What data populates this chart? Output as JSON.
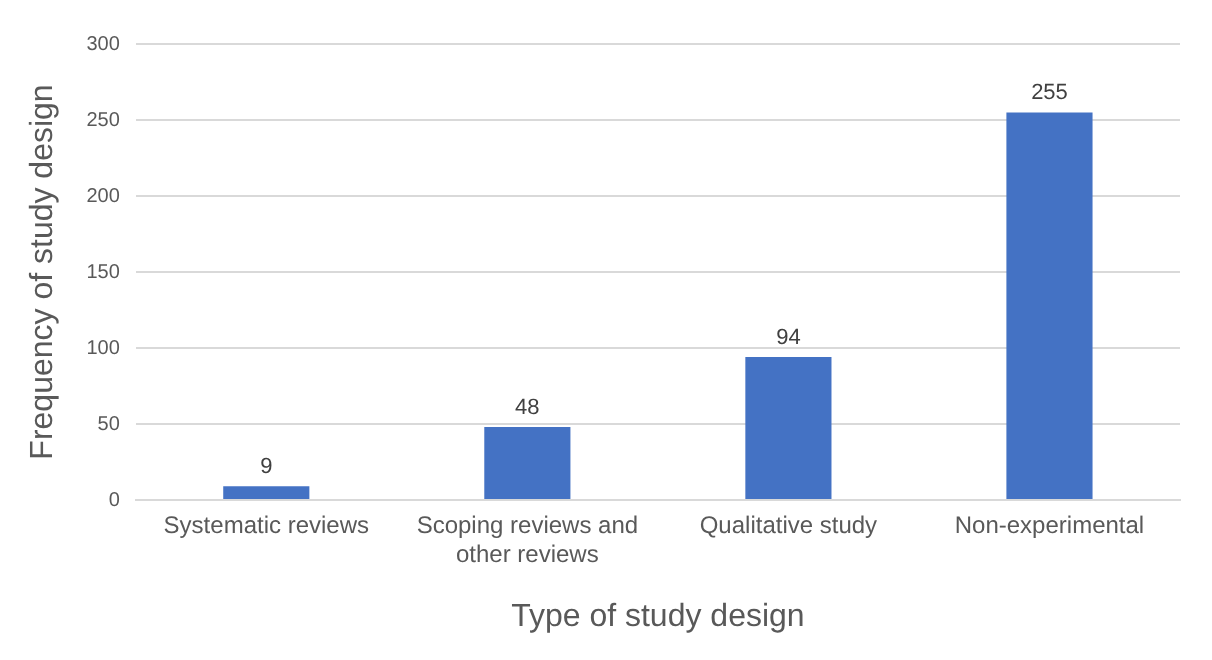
{
  "chart_data": {
    "type": "bar",
    "xlabel": "Type of study design",
    "ylabel": "Frequency of study design",
    "categories": [
      "Systematic reviews",
      "Scoping reviews and other reviews",
      "Qualitative study",
      "Non-experimental"
    ],
    "values": [
      9,
      48,
      94,
      255
    ],
    "color": "#4472c4",
    "ylim": [
      0,
      300
    ],
    "yticks": [
      0,
      50,
      100,
      150,
      200,
      250,
      300
    ],
    "grid": "y",
    "data_labels": true
  }
}
